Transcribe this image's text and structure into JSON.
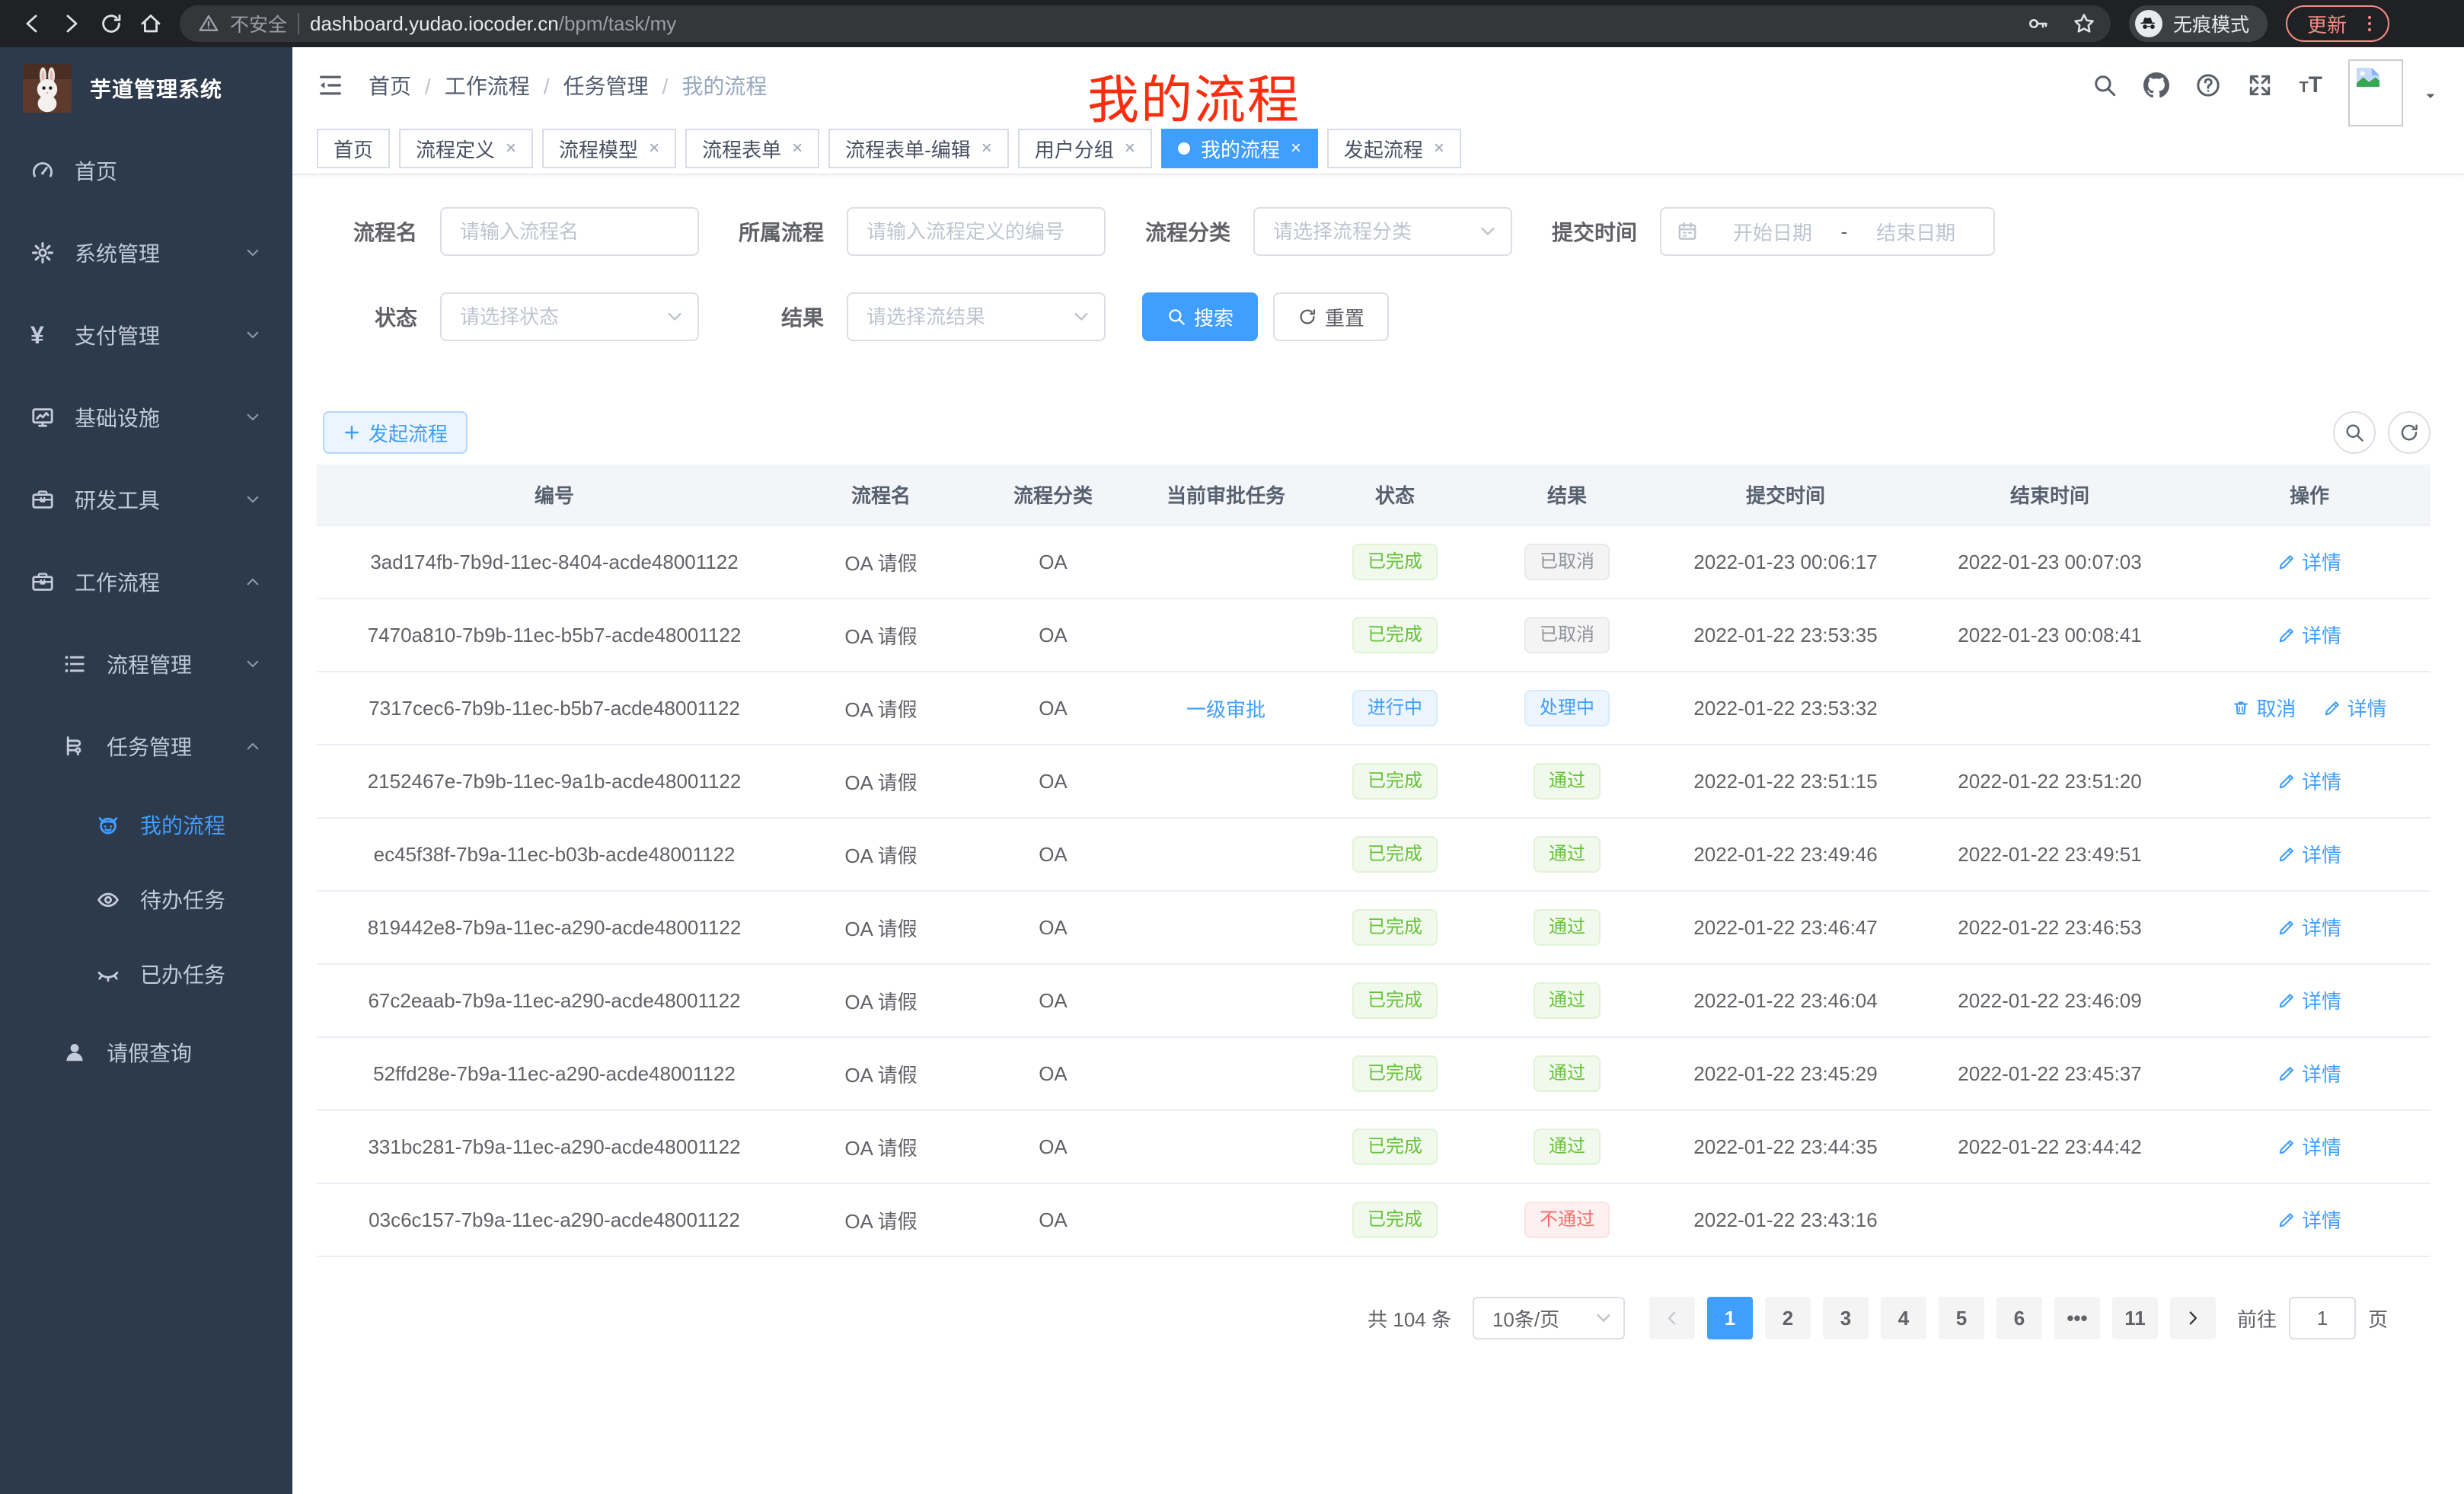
{
  "theme": {
    "accent": "#409eff",
    "success": "#67c23a",
    "danger": "#f56c6c",
    "info": "#909399",
    "sidebar_bg": "#2d3a4b",
    "overlay_red": "#fb2d0f",
    "update_pill": "#f28b82"
  },
  "browser": {
    "security_label": "不安全",
    "url_host": "dashboard.yudao.iocoder.cn",
    "url_path": "/bpm/task/my",
    "incognito_label": "无痕模式",
    "update_label": "更新"
  },
  "sidebar": {
    "title": "芋道管理系统",
    "menu": [
      {
        "label": "首页",
        "icon": "dashboard-icon",
        "depth": 0,
        "arrow": "",
        "active": false
      },
      {
        "label": "系统管理",
        "icon": "gear-icon",
        "depth": 0,
        "arrow": "down",
        "active": false
      },
      {
        "label": "支付管理",
        "icon": "yen-icon",
        "depth": 0,
        "arrow": "down",
        "active": false
      },
      {
        "label": "基础设施",
        "icon": "monitor-icon",
        "depth": 0,
        "arrow": "down",
        "active": false
      },
      {
        "label": "研发工具",
        "icon": "toolbox-icon",
        "depth": 0,
        "arrow": "down",
        "active": false
      },
      {
        "label": "工作流程",
        "icon": "briefcase-icon",
        "depth": 0,
        "arrow": "up",
        "active": false
      },
      {
        "label": "流程管理",
        "icon": "list-icon",
        "depth": 1,
        "arrow": "down",
        "active": false
      },
      {
        "label": "任务管理",
        "icon": "tree-icon",
        "depth": 1,
        "arrow": "up",
        "active": false
      },
      {
        "label": "我的流程",
        "icon": "robot-icon",
        "depth": 2,
        "arrow": "",
        "active": true
      },
      {
        "label": "待办任务",
        "icon": "eye-icon",
        "depth": 2,
        "arrow": "",
        "active": false
      },
      {
        "label": "已办任务",
        "icon": "eye-closed-icon",
        "depth": 2,
        "arrow": "",
        "active": false
      },
      {
        "label": "请假查询",
        "icon": "user-icon",
        "depth": 1,
        "arrow": "",
        "active": false
      }
    ]
  },
  "header": {
    "breadcrumb": [
      {
        "label": "首页"
      },
      {
        "label": "工作流程"
      },
      {
        "label": "任务管理"
      },
      {
        "label": "我的流程"
      }
    ],
    "overlay_title": "我的流程"
  },
  "tabs": [
    {
      "label": "首页",
      "close": "",
      "active": false
    },
    {
      "label": "流程定义",
      "close": "×",
      "active": false
    },
    {
      "label": "流程模型",
      "close": "×",
      "active": false
    },
    {
      "label": "流程表单",
      "close": "×",
      "active": false
    },
    {
      "label": "流程表单-编辑",
      "close": "×",
      "active": false
    },
    {
      "label": "用户分组",
      "close": "×",
      "active": false
    },
    {
      "label": "我的流程",
      "close": "×",
      "active": true
    },
    {
      "label": "发起流程",
      "close": "×",
      "active": false
    }
  ],
  "filters": {
    "name_label": "流程名",
    "name_placeholder": "请输入流程名",
    "definition_label": "所属流程",
    "definition_placeholder": "请输入流程定义的编号",
    "category_label": "流程分类",
    "category_placeholder": "请选择流程分类",
    "time_label": "提交时间",
    "start_placeholder": "开始日期",
    "range_separator": "-",
    "end_placeholder": "结束日期",
    "status_label": "状态",
    "status_placeholder": "请选择状态",
    "result_label": "结果",
    "result_placeholder": "请选择流结果",
    "search_button": "搜索",
    "reset_button": "重置"
  },
  "toolbar": {
    "create_button": "发起流程"
  },
  "table": {
    "columns": [
      "编号",
      "流程名",
      "流程分类",
      "当前审批任务",
      "状态",
      "结果",
      "提交时间",
      "结束时间",
      "操作"
    ],
    "rows": [
      {
        "id": "3ad174fb-7b9d-11ec-8404-acde48001122",
        "name": "OA 请假",
        "category": "OA",
        "task": "",
        "status": {
          "label": "已完成",
          "type": "success"
        },
        "result": {
          "label": "已取消",
          "type": "info"
        },
        "submit_time": "2022-01-23 00:06:17",
        "end_time": "2022-01-23 00:07:03",
        "cancel": "",
        "detail": "详情"
      },
      {
        "id": "7470a810-7b9b-11ec-b5b7-acde48001122",
        "name": "OA 请假",
        "category": "OA",
        "task": "",
        "status": {
          "label": "已完成",
          "type": "success"
        },
        "result": {
          "label": "已取消",
          "type": "info"
        },
        "submit_time": "2022-01-22 23:53:35",
        "end_time": "2022-01-23 00:08:41",
        "cancel": "",
        "detail": "详情"
      },
      {
        "id": "7317cec6-7b9b-11ec-b5b7-acde48001122",
        "name": "OA 请假",
        "category": "OA",
        "task": "一级审批",
        "status": {
          "label": "进行中",
          "type": "primary"
        },
        "result": {
          "label": "处理中",
          "type": "primary"
        },
        "submit_time": "2022-01-22 23:53:32",
        "end_time": "",
        "cancel": "取消",
        "detail": "详情"
      },
      {
        "id": "2152467e-7b9b-11ec-9a1b-acde48001122",
        "name": "OA 请假",
        "category": "OA",
        "task": "",
        "status": {
          "label": "已完成",
          "type": "success"
        },
        "result": {
          "label": "通过",
          "type": "success"
        },
        "submit_time": "2022-01-22 23:51:15",
        "end_time": "2022-01-22 23:51:20",
        "cancel": "",
        "detail": "详情"
      },
      {
        "id": "ec45f38f-7b9a-11ec-b03b-acde48001122",
        "name": "OA 请假",
        "category": "OA",
        "task": "",
        "status": {
          "label": "已完成",
          "type": "success"
        },
        "result": {
          "label": "通过",
          "type": "success"
        },
        "submit_time": "2022-01-22 23:49:46",
        "end_time": "2022-01-22 23:49:51",
        "cancel": "",
        "detail": "详情"
      },
      {
        "id": "819442e8-7b9a-11ec-a290-acde48001122",
        "name": "OA 请假",
        "category": "OA",
        "task": "",
        "status": {
          "label": "已完成",
          "type": "success"
        },
        "result": {
          "label": "通过",
          "type": "success"
        },
        "submit_time": "2022-01-22 23:46:47",
        "end_time": "2022-01-22 23:46:53",
        "cancel": "",
        "detail": "详情"
      },
      {
        "id": "67c2eaab-7b9a-11ec-a290-acde48001122",
        "name": "OA 请假",
        "category": "OA",
        "task": "",
        "status": {
          "label": "已完成",
          "type": "success"
        },
        "result": {
          "label": "通过",
          "type": "success"
        },
        "submit_time": "2022-01-22 23:46:04",
        "end_time": "2022-01-22 23:46:09",
        "cancel": "",
        "detail": "详情"
      },
      {
        "id": "52ffd28e-7b9a-11ec-a290-acde48001122",
        "name": "OA 请假",
        "category": "OA",
        "task": "",
        "status": {
          "label": "已完成",
          "type": "success"
        },
        "result": {
          "label": "通过",
          "type": "success"
        },
        "submit_time": "2022-01-22 23:45:29",
        "end_time": "2022-01-22 23:45:37",
        "cancel": "",
        "detail": "详情"
      },
      {
        "id": "331bc281-7b9a-11ec-a290-acde48001122",
        "name": "OA 请假",
        "category": "OA",
        "task": "",
        "status": {
          "label": "已完成",
          "type": "success"
        },
        "result": {
          "label": "通过",
          "type": "success"
        },
        "submit_time": "2022-01-22 23:44:35",
        "end_time": "2022-01-22 23:44:42",
        "cancel": "",
        "detail": "详情"
      },
      {
        "id": "03c6c157-7b9a-11ec-a290-acde48001122",
        "name": "OA 请假",
        "category": "OA",
        "task": "",
        "status": {
          "label": "已完成",
          "type": "success"
        },
        "result": {
          "label": "不通过",
          "type": "danger"
        },
        "submit_time": "2022-01-22 23:43:16",
        "end_time": "",
        "cancel": "",
        "detail": "详情"
      }
    ]
  },
  "pagination": {
    "total": "共 104 条",
    "page_size": "10条/页",
    "pages": [
      {
        "label": "1",
        "active": true
      },
      {
        "label": "2",
        "active": false
      },
      {
        "label": "3",
        "active": false
      },
      {
        "label": "4",
        "active": false
      },
      {
        "label": "5",
        "active": false
      },
      {
        "label": "6",
        "active": false
      },
      {
        "label": "•••",
        "active": false
      },
      {
        "label": "11",
        "active": false
      }
    ],
    "goto_prefix": "前往",
    "goto_value": "1",
    "goto_suffix": "页"
  }
}
